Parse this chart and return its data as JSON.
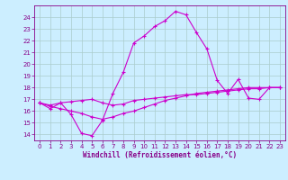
{
  "xlabel": "Windchill (Refroidissement éolien,°C)",
  "ylabel": "",
  "background_color": "#cceeff",
  "line_color": "#cc00cc",
  "grid_color": "#aacccc",
  "xlim": [
    -0.5,
    23.5
  ],
  "ylim": [
    13.5,
    25.0
  ],
  "yticks": [
    14,
    15,
    16,
    17,
    18,
    19,
    20,
    21,
    22,
    23,
    24
  ],
  "xticks": [
    0,
    1,
    2,
    3,
    4,
    5,
    6,
    7,
    8,
    9,
    10,
    11,
    12,
    13,
    14,
    15,
    16,
    17,
    18,
    19,
    20,
    21,
    22,
    23
  ],
  "curve1_x": [
    0,
    1,
    2,
    3,
    4,
    5,
    6,
    7,
    8,
    9,
    10,
    11,
    12,
    13,
    14,
    15,
    16,
    17,
    18,
    19,
    20,
    21,
    22,
    23
  ],
  "curve1_y": [
    16.7,
    16.2,
    16.7,
    15.7,
    14.1,
    13.9,
    15.2,
    17.5,
    19.3,
    21.8,
    22.4,
    23.2,
    23.7,
    24.5,
    24.2,
    22.7,
    21.3,
    18.6,
    17.5,
    18.7,
    17.1,
    17.0,
    18.0,
    18.0
  ],
  "curve2_x": [
    0,
    1,
    2,
    3,
    4,
    5,
    6,
    7,
    8,
    9,
    10,
    11,
    12,
    13,
    14,
    15,
    16,
    17,
    18,
    19,
    20,
    21,
    22,
    23
  ],
  "curve2_y": [
    16.7,
    16.5,
    16.7,
    16.8,
    16.9,
    17.0,
    16.7,
    16.5,
    16.6,
    16.9,
    17.0,
    17.1,
    17.2,
    17.3,
    17.4,
    17.4,
    17.5,
    17.6,
    17.7,
    17.8,
    17.9,
    17.9,
    18.0,
    18.0
  ],
  "curve3_x": [
    0,
    1,
    2,
    3,
    4,
    5,
    6,
    7,
    8,
    9,
    10,
    11,
    12,
    13,
    14,
    15,
    16,
    17,
    18,
    19,
    20,
    21,
    22,
    23
  ],
  "curve3_y": [
    16.7,
    16.4,
    16.2,
    16.0,
    15.8,
    15.5,
    15.3,
    15.5,
    15.8,
    16.0,
    16.3,
    16.6,
    16.9,
    17.1,
    17.3,
    17.5,
    17.6,
    17.7,
    17.8,
    17.9,
    18.0,
    18.0,
    18.0,
    18.0
  ]
}
